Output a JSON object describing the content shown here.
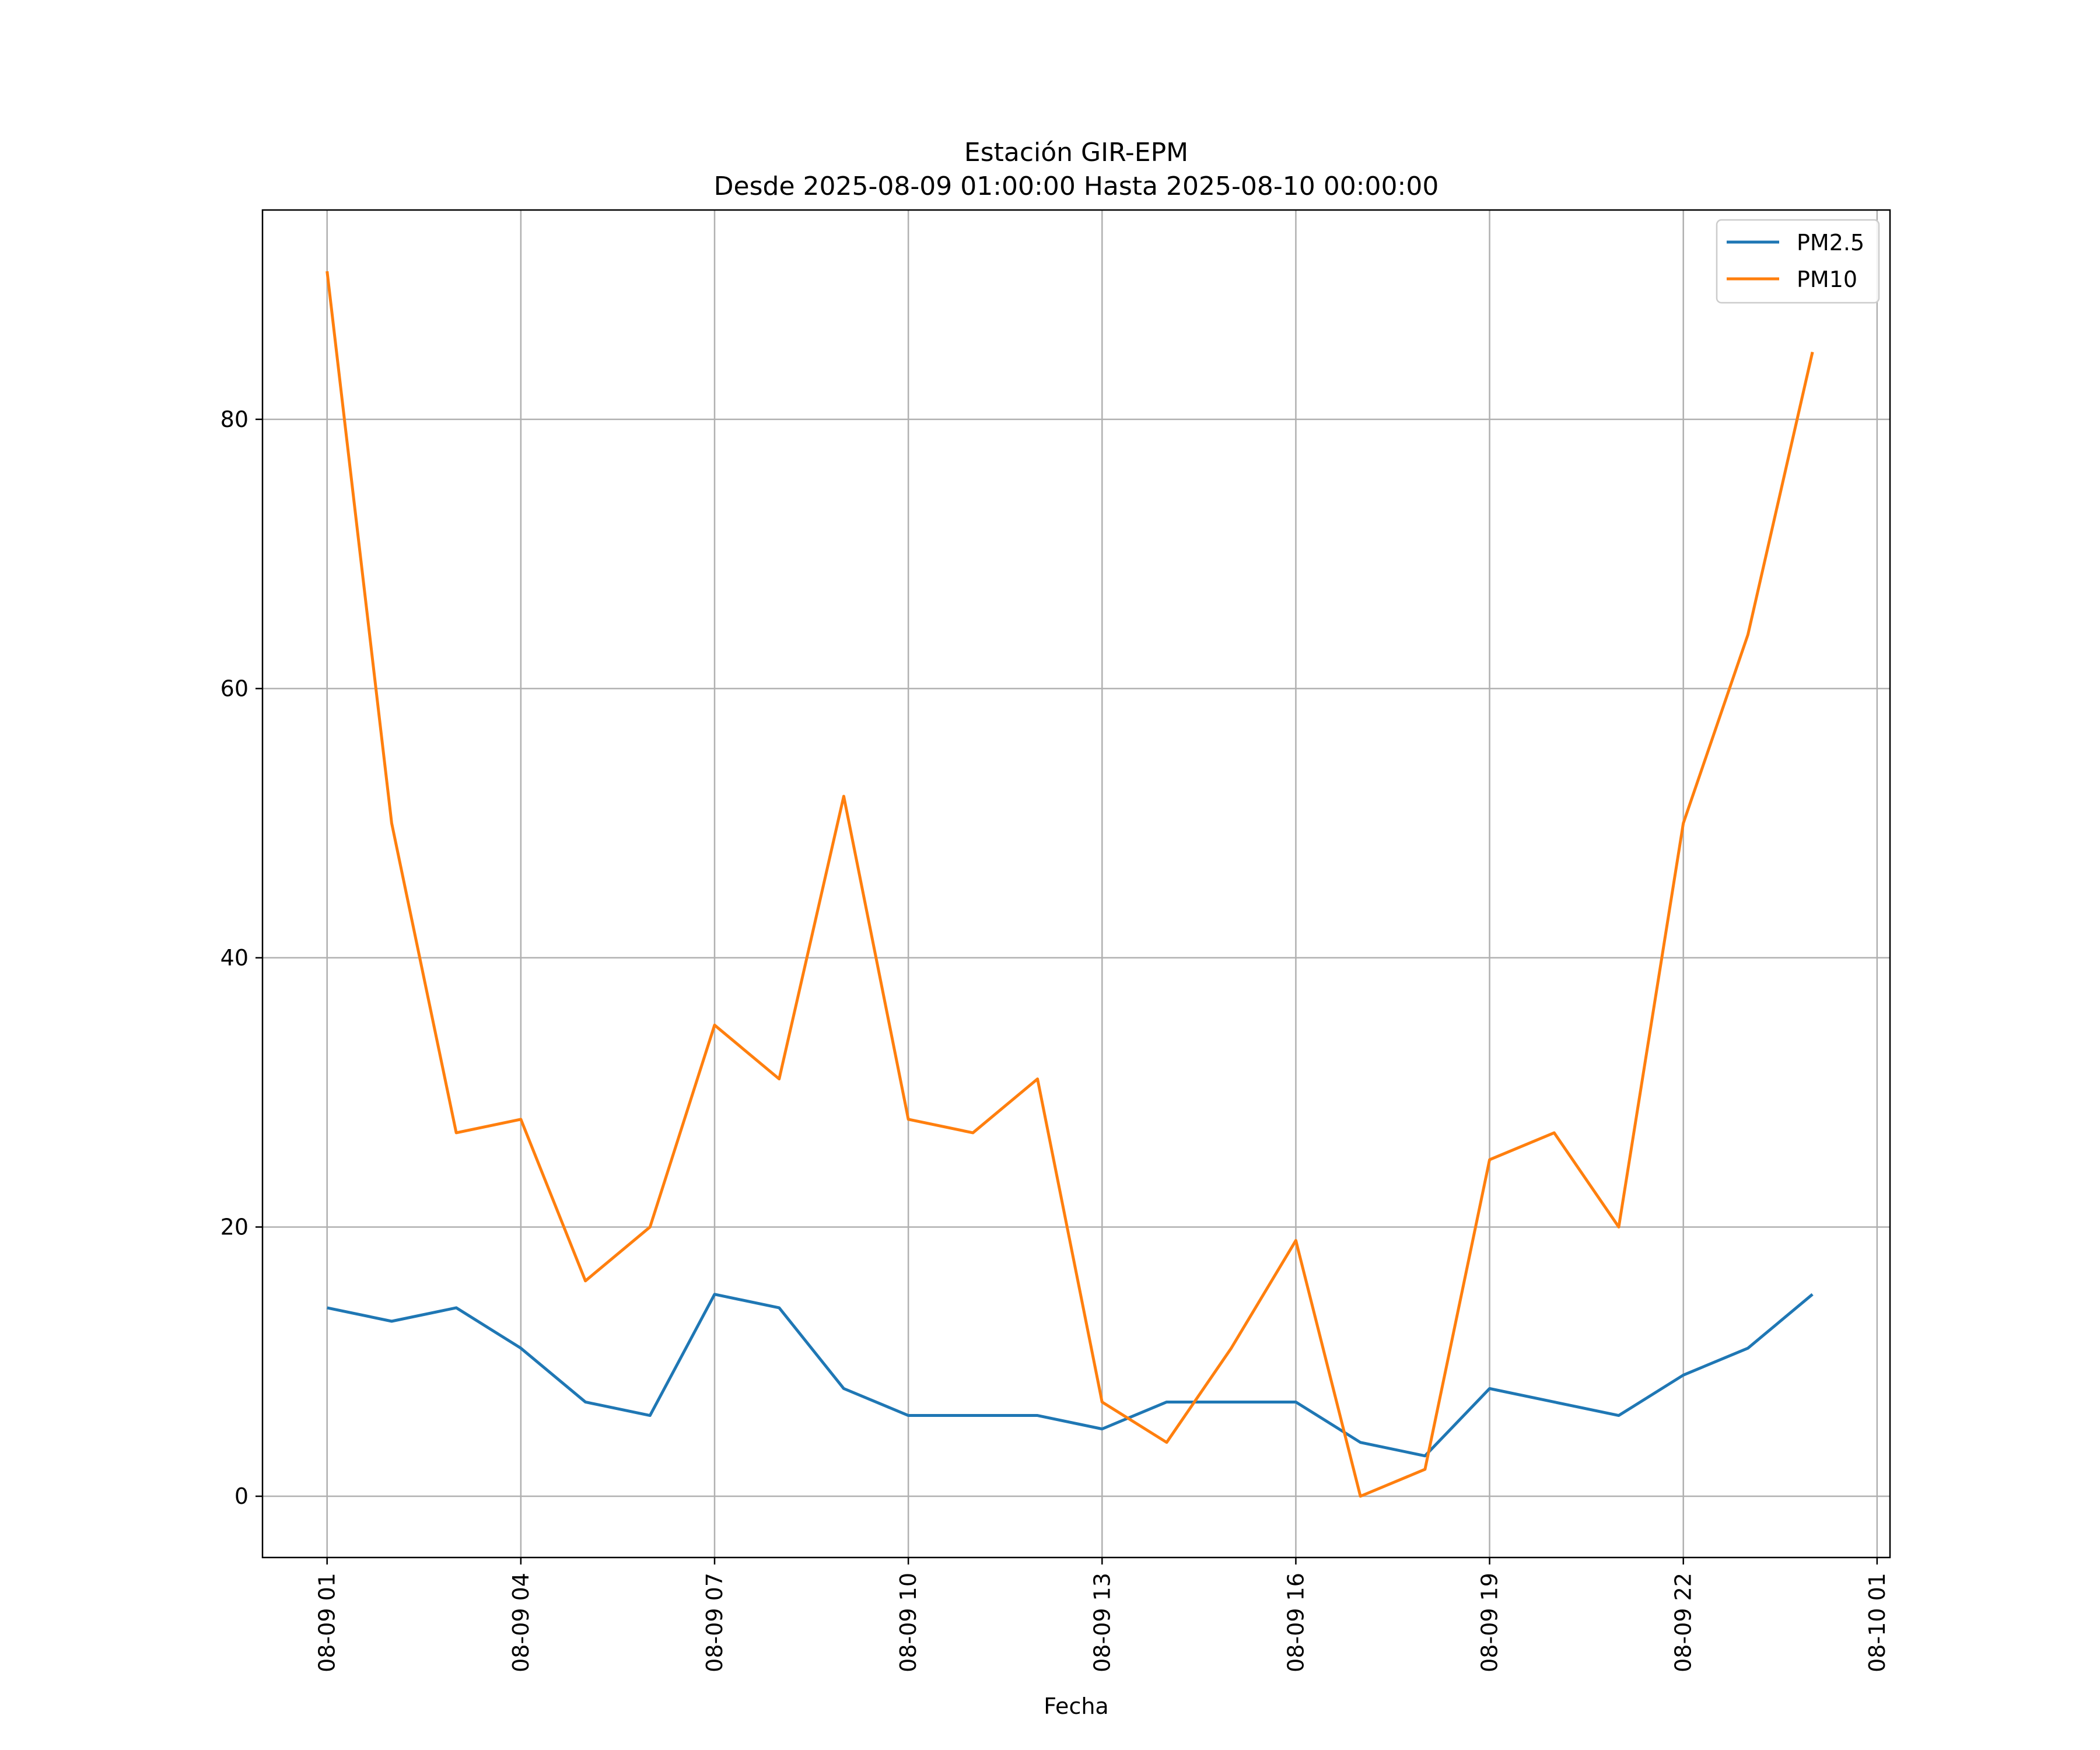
{
  "chart_data": {
    "type": "line",
    "title": "Estación GIR-EPM",
    "subtitle": "Desde 2025-08-09 01:00:00 Hasta 2025-08-10 00:00:00",
    "xlabel": "Fecha",
    "ylabel": "",
    "x": [
      "08-09 01",
      "08-09 02",
      "08-09 03",
      "08-09 04",
      "08-09 05",
      "08-09 06",
      "08-09 07",
      "08-09 08",
      "08-09 09",
      "08-09 10",
      "08-09 11",
      "08-09 12",
      "08-09 13",
      "08-09 14",
      "08-09 15",
      "08-09 16",
      "08-09 17",
      "08-09 18",
      "08-09 19",
      "08-09 20",
      "08-09 21",
      "08-09 22",
      "08-09 23",
      "08-10 00"
    ],
    "x_hours": [
      0,
      1,
      2,
      3,
      4,
      5,
      6,
      7,
      8,
      9,
      10,
      11,
      12,
      13,
      14,
      15,
      16,
      17,
      18,
      19,
      20,
      21,
      22,
      23
    ],
    "xlim": [
      -1.0,
      24.2
    ],
    "xticks": [
      0,
      3,
      6,
      9,
      12,
      15,
      18,
      21,
      24
    ],
    "xtick_labels": [
      "08-09 01",
      "08-09 04",
      "08-09 07",
      "08-09 10",
      "08-09 13",
      "08-09 16",
      "08-09 19",
      "08-09 22",
      "08-10 01"
    ],
    "ylim": [
      -4.55,
      95.55
    ],
    "yticks": [
      0,
      20,
      40,
      60,
      80
    ],
    "ytick_labels": [
      "0",
      "20",
      "40",
      "60",
      "80"
    ],
    "grid": true,
    "legend_position": "top-right",
    "series": [
      {
        "name": "PM2.5",
        "color": "#1f77b4",
        "values": [
          14,
          13,
          14,
          11,
          7,
          6,
          15,
          14,
          8,
          6,
          6,
          6,
          5,
          7,
          7,
          7,
          4,
          3,
          8,
          7,
          6,
          9,
          11,
          15
        ]
      },
      {
        "name": "PM10",
        "color": "#ff7f0e",
        "values": [
          91,
          50,
          27,
          28,
          16,
          20,
          35,
          31,
          52,
          28,
          27,
          31,
          7,
          4,
          11,
          19,
          0,
          2,
          25,
          27,
          20,
          50,
          64,
          85
        ]
      }
    ]
  }
}
